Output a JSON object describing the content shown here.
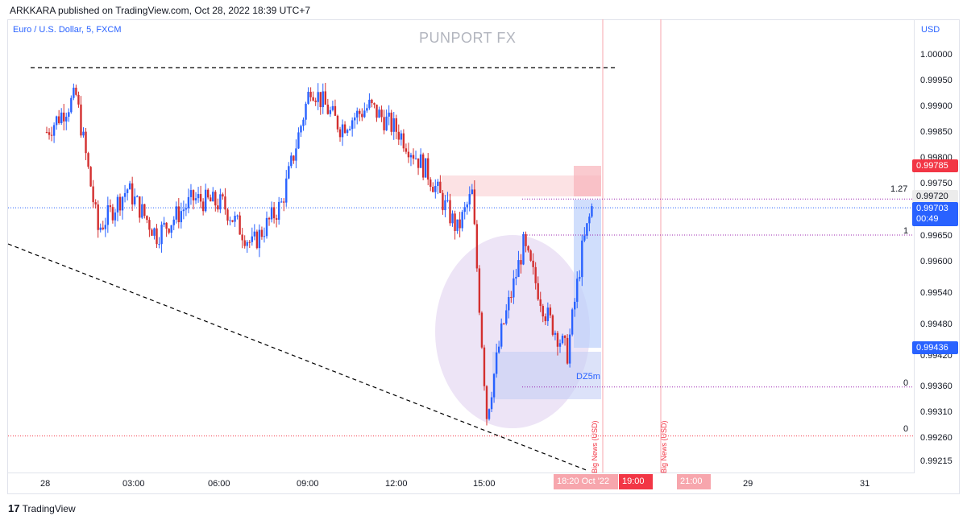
{
  "header": {
    "publisher": "ARKKARA published on TradingView.com, Oct 28, 2022 18:39 UTC+7"
  },
  "legend": {
    "symbol": "Euro / U.S. Dollar, 5, FXCM"
  },
  "watermark": "PUNPORT FX",
  "yaxis": {
    "currency": "USD",
    "ticks": [
      "1.00000",
      "0.99950",
      "0.99900",
      "0.99850",
      "0.99800",
      "0.99750",
      "0.99650",
      "0.99600",
      "0.99540",
      "0.99480",
      "0.99420",
      "0.99360",
      "0.99310",
      "0.99260",
      "0.99215"
    ]
  },
  "xaxis": {
    "ticks": [
      "28",
      "03:00",
      "06:00",
      "09:00",
      "12:00",
      "15:00",
      "29",
      "31"
    ],
    "highlight_badges": [
      "18:20",
      "Oct '22",
      "19:00",
      "21:00"
    ]
  },
  "price_badges": {
    "high": "0.99785",
    "fib127": "0.99720",
    "current": "0.99703",
    "countdown": "00:49",
    "entry": "0.99436"
  },
  "fib_labels": {
    "level_127": "1.27",
    "level_1": "1",
    "level_0_upper": "0",
    "level_0_lower": "0"
  },
  "annotations": {
    "zone_label": "DZ5m",
    "news_1": "Big News (USD)",
    "news_2": "Big News (USD)"
  },
  "footer": {
    "brand": "TradingView"
  },
  "colors": {
    "up": "#2962ff",
    "down": "#d32f2f",
    "accent": "#f23645",
    "zone": "#d1c4e9"
  },
  "chart_data": {
    "type": "candlestick",
    "symbol": "EURUSD",
    "timeframe": "5",
    "ylim": [
      0.99215,
      1.0
    ],
    "close_path": [
      {
        "t": "28 00:00",
        "price": 0.9985
      },
      {
        "t": "28 01:00",
        "price": 0.9992
      },
      {
        "t": "28 01:45",
        "price": 0.9966
      },
      {
        "t": "28 02:45",
        "price": 0.9974
      },
      {
        "t": "28 03:45",
        "price": 0.9965
      },
      {
        "t": "28 05:00",
        "price": 0.9972
      },
      {
        "t": "28 06:00",
        "price": 0.9971
      },
      {
        "t": "28 07:00",
        "price": 0.9963
      },
      {
        "t": "28 08:00",
        "price": 0.9971
      },
      {
        "t": "28 09:00",
        "price": 0.9994
      },
      {
        "t": "28 10:00",
        "price": 0.9986
      },
      {
        "t": "28 11:00",
        "price": 0.999
      },
      {
        "t": "28 12:00",
        "price": 0.9985
      },
      {
        "t": "28 13:00",
        "price": 0.9977
      },
      {
        "t": "28 14:00",
        "price": 0.9966
      },
      {
        "t": "28 14:30",
        "price": 0.9973
      },
      {
        "t": "28 15:00",
        "price": 0.993
      },
      {
        "t": "28 15:30",
        "price": 0.9946
      },
      {
        "t": "28 16:15",
        "price": 0.9963
      },
      {
        "t": "28 17:00",
        "price": 0.995
      },
      {
        "t": "28 17:45",
        "price": 0.9942
      },
      {
        "t": "28 18:15",
        "price": 0.9962
      },
      {
        "t": "28 18:35",
        "price": 0.99703
      }
    ],
    "levels": {
      "resistance": 0.99975,
      "fib_1_27": 0.9972,
      "fib_1": 0.9965,
      "fib_0": 0.99355,
      "low_0": 0.9926
    }
  }
}
